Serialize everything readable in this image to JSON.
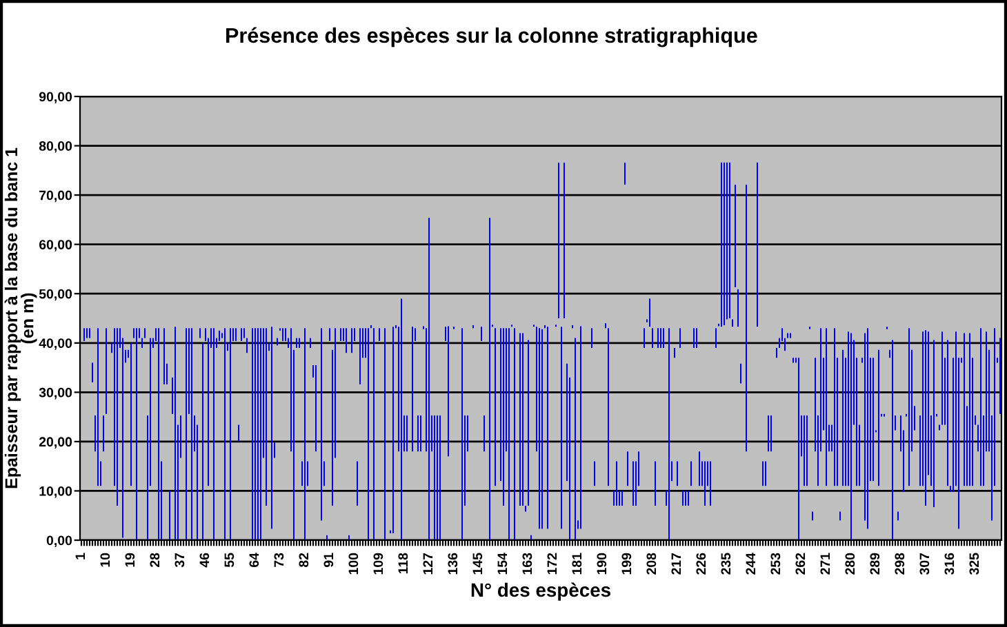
{
  "chart_data": {
    "type": "bar",
    "title": "Présence des espèces sur la colonne stratigraphique",
    "xlabel": "N° des espèces",
    "ylabel": "Epaisseur par rapport à la base du banc 1\n(en m)",
    "categories": [
      "1",
      null,
      null,
      null,
      null,
      null,
      null,
      null,
      null,
      "10",
      null,
      null,
      null,
      null,
      null,
      null,
      null,
      null,
      "19",
      null,
      null,
      null,
      null,
      null,
      null,
      null,
      null,
      "28",
      null,
      null,
      null,
      null,
      null,
      null,
      null,
      null,
      "37",
      null,
      null,
      null,
      null,
      null,
      null,
      null,
      null,
      "46",
      null,
      null,
      null,
      null,
      null,
      null,
      null,
      null,
      "55",
      null,
      null,
      null,
      null,
      null,
      null,
      null,
      null,
      "64",
      null,
      null,
      null,
      null,
      null,
      null,
      null,
      null,
      "73",
      null,
      null,
      null,
      null,
      null,
      null,
      null,
      null,
      "82",
      null,
      null,
      null,
      null,
      null,
      null,
      null,
      null,
      "91",
      null,
      null,
      null,
      null,
      null,
      null,
      null,
      null,
      "100",
      null,
      null,
      null,
      null,
      null,
      null,
      null,
      null,
      "109",
      null,
      null,
      null,
      null,
      null,
      null,
      null,
      null,
      "118",
      null,
      null,
      null,
      null,
      null,
      null,
      null,
      null,
      "127",
      null,
      null,
      null,
      null,
      null,
      null,
      null,
      null,
      "136",
      null,
      null,
      null,
      null,
      null,
      null,
      null,
      null,
      "145",
      null,
      null,
      null,
      null,
      null,
      null,
      null,
      null,
      "154",
      null,
      null,
      null,
      null,
      null,
      null,
      null,
      null,
      "163",
      null,
      null,
      null,
      null,
      null,
      null,
      null,
      null,
      "172",
      null,
      null,
      null,
      null,
      null,
      null,
      null,
      null,
      "181",
      null,
      null,
      null,
      null,
      null,
      null,
      null,
      null,
      "190",
      null,
      null,
      null,
      null,
      null,
      null,
      null,
      null,
      "199",
      null,
      null,
      null,
      null,
      null,
      null,
      null,
      null,
      "208",
      null,
      null,
      null,
      null,
      null,
      null,
      null,
      null,
      "217",
      null,
      null,
      null,
      null,
      null,
      null,
      null,
      null,
      "226",
      null,
      null,
      null,
      null,
      null,
      null,
      null,
      null,
      "235",
      null,
      null,
      null,
      null,
      null,
      null,
      null,
      null,
      "244",
      null,
      null,
      null,
      null,
      null,
      null,
      null,
      null,
      "253",
      null,
      null,
      null,
      null,
      null,
      null,
      null,
      null,
      "262",
      null,
      null,
      null,
      null,
      null,
      null,
      null,
      null,
      "271",
      null,
      null,
      null,
      null,
      null,
      null,
      null,
      null,
      "280",
      null,
      null,
      null,
      null,
      null,
      null,
      null,
      null,
      "289",
      null,
      null,
      null,
      null,
      null,
      null,
      null,
      null,
      "298",
      null,
      null,
      null,
      null,
      null,
      null,
      null,
      null,
      "307",
      null,
      null,
      null,
      null,
      null,
      null,
      null,
      null,
      "316",
      null,
      null,
      null,
      null,
      null,
      null,
      null,
      null,
      "325",
      null,
      null,
      null,
      null,
      null,
      null,
      null,
      null,
      null
    ],
    "base": [
      null,
      40.4,
      41,
      41,
      32,
      18,
      11,
      11,
      18,
      25.6,
      null,
      38,
      11,
      7,
      39,
      0.5,
      36,
      37,
      11,
      41,
      0,
      41,
      39,
      41,
      0,
      11,
      39,
      40.4,
      0,
      0,
      31.6,
      31.6,
      0,
      25.6,
      0,
      0,
      16.7,
      null,
      0,
      25.6,
      0,
      18,
      0,
      41,
      0,
      40.4,
      11,
      39,
      0,
      39,
      40.4,
      41,
      0,
      38.4,
      0,
      40.4,
      40.4,
      20,
      40.4,
      41,
      38,
      null,
      0,
      0,
      0,
      0,
      16.7,
      7,
      38.4,
      2.3,
      16.7,
      39.5,
      42.5,
      40.4,
      40.4,
      39,
      18,
      0,
      39,
      39,
      11,
      0,
      11,
      39,
      33,
      18,
      null,
      4,
      11,
      0,
      40.4,
      7,
      16.7,
      null,
      40.4,
      40.4,
      38,
      0,
      38,
      40.4,
      7,
      31.6,
      37,
      37,
      0,
      43,
      0,
      null,
      40.4,
      null,
      0,
      null,
      1.4,
      1.4,
      43,
      18,
      0,
      18,
      18,
      null,
      18,
      40.4,
      18,
      18,
      42.8,
      18,
      0,
      18,
      0,
      0,
      0,
      null,
      40.4,
      17,
      null,
      42.8,
      null,
      null,
      0,
      7,
      18,
      null,
      43,
      null,
      null,
      40.4,
      18,
      null,
      0,
      43.3,
      11,
      null,
      12,
      7,
      18,
      0,
      43.3,
      0,
      null,
      7,
      7,
      5.8,
      7,
      0,
      43.3,
      18,
      2.3,
      2.3,
      43,
      2.3,
      null,
      null,
      43.3,
      45,
      2.3,
      45,
      12,
      0,
      43,
      0,
      2.3,
      2.3,
      null,
      null,
      null,
      39,
      11,
      null,
      null,
      null,
      43,
      11,
      null,
      7,
      7,
      7,
      7,
      72.1,
      11,
      null,
      7,
      7,
      11,
      null,
      39,
      44.2,
      43.3,
      39,
      7,
      39,
      39,
      39,
      7,
      0,
      12,
      37,
      11,
      39,
      7,
      7,
      7,
      11,
      39,
      39,
      11,
      11,
      7,
      11,
      7,
      null,
      39,
      43.4,
      43.3,
      43.6,
      44.8,
      45,
      43.3,
      51.3,
      43.3,
      31.8,
      null,
      18,
      null,
      null,
      null,
      43.3,
      null,
      11,
      11,
      18,
      18,
      null,
      37,
      39,
      40.4,
      38.4,
      41,
      41,
      36,
      36,
      0,
      17,
      11,
      11,
      42.8,
      4,
      18,
      11,
      18,
      22.3,
      11,
      18,
      18,
      11,
      11,
      4,
      11,
      11,
      11,
      0,
      23.4,
      11,
      11,
      36,
      4,
      2.3,
      12,
      12,
      21.9,
      11,
      25.1,
      25.1,
      42.8,
      37,
      0,
      22.3,
      4,
      18,
      9.8,
      25.1,
      11,
      18,
      22.3,
      null,
      11,
      11,
      7,
      13.2,
      11,
      6.7,
      25.1,
      22.3,
      23.4,
      23.4,
      11,
      9.8,
      9.8,
      11,
      2.3,
      36,
      11,
      11,
      11,
      11,
      23.4,
      18,
      11,
      11,
      18,
      18,
      4,
      11,
      36,
      25.6
    ],
    "values": [
      null,
      2.6,
      2,
      2,
      4,
      7.3,
      32,
      5,
      7.3,
      17.4,
      null,
      2,
      32,
      36,
      4,
      40.5,
      2.6,
      1.6,
      29,
      2,
      43,
      2,
      2,
      2,
      25.3,
      30,
      2,
      2.6,
      43,
      16,
      11.4,
      4.2,
      10,
      7.4,
      43.3,
      23.4,
      8.6,
      null,
      43,
      17.4,
      43,
      7.3,
      23.4,
      2,
      40,
      2.6,
      30,
      4,
      43,
      2,
      2.1,
      1,
      43,
      1.6,
      43,
      2.6,
      2.6,
      3.4,
      2.6,
      2,
      3,
      null,
      43,
      43,
      43,
      43,
      26.3,
      36,
      1.6,
      41,
      3.1,
      1.5,
      0.5,
      2.6,
      2.6,
      2,
      25,
      38.6,
      2,
      2,
      5,
      43,
      5,
      2,
      2.5,
      17.5,
      null,
      39,
      5,
      1,
      2.6,
      31.6,
      26.3,
      null,
      2.6,
      2.6,
      5,
      1,
      5,
      2.6,
      9,
      11.4,
      6,
      6,
      43,
      0.6,
      43,
      null,
      2.6,
      null,
      43,
      null,
      0.6,
      41.9,
      0.6,
      25.3,
      49,
      7.3,
      7.3,
      null,
      25.3,
      2.6,
      7.3,
      7.3,
      0.6,
      25,
      65.4,
      7.3,
      25.3,
      25.3,
      25.3,
      null,
      2.9,
      26.4,
      null,
      0.5,
      null,
      null,
      43,
      18.3,
      7.3,
      null,
      0.6,
      null,
      null,
      2.9,
      7.3,
      null,
      65.4,
      0.4,
      32,
      null,
      31,
      36,
      25,
      43,
      0.4,
      43,
      null,
      35,
      35,
      1.2,
      33.6,
      1,
      0.4,
      25.3,
      40.7,
      40.5,
      0.6,
      41,
      null,
      null,
      0.4,
      31.6,
      41,
      31.6,
      23.8,
      33,
      0.6,
      41,
      1.7,
      41.1,
      null,
      null,
      null,
      4,
      5,
      null,
      null,
      null,
      1,
      32,
      null,
      3,
      9,
      3,
      3,
      4.5,
      7,
      null,
      9,
      9,
      7,
      null,
      4,
      0.6,
      5.7,
      4,
      9,
      4,
      4,
      4,
      3,
      43,
      4,
      2,
      5,
      4,
      3,
      3,
      3,
      5,
      4,
      4,
      7,
      5,
      9,
      5,
      9,
      null,
      4,
      0.5,
      33.3,
      33,
      31.8,
      31.6,
      1.5,
      20.8,
      7.6,
      4,
      null,
      54.1,
      null,
      null,
      null,
      33.3,
      null,
      5,
      5,
      7.3,
      7.3,
      null,
      2,
      2,
      2.6,
      2.6,
      1,
      1,
      1,
      1,
      37,
      8.3,
      14.3,
      14.3,
      0.5,
      1.8,
      19,
      14.3,
      25,
      14.7,
      32,
      5.4,
      5.4,
      32,
      26,
      1.8,
      27.6,
      26,
      31.3,
      42,
      17.2,
      26,
      12.4,
      1,
      38,
      40.7,
      25,
      25,
      0.4,
      27.6,
      0.5,
      0.5,
      0.5,
      1.6,
      40.6,
      3,
      1.8,
      7.3,
      12.5,
      0.5,
      32,
      20.6,
      4.9,
      null,
      14.3,
      31.3,
      35.6,
      29.1,
      14.3,
      33.9,
      0.5,
      1.1,
      18.9,
      13.6,
      29.6,
      1.2,
      27.2,
      31.3,
      34.7,
      1,
      31,
      16.2,
      31,
      26,
      1.9,
      5.4,
      32,
      14.3,
      24.3,
      20.6,
      21.3,
      32,
      1,
      15.4
    ],
    "color": "#0000ff",
    "ylim": [
      0,
      90
    ],
    "yticks": [
      {
        "value": 0,
        "label": "0,00"
      },
      {
        "value": 10,
        "label": "10,00"
      },
      {
        "value": 20,
        "label": "20,00"
      },
      {
        "value": 30,
        "label": "30,00"
      },
      {
        "value": 40,
        "label": "40,00"
      },
      {
        "value": 50,
        "label": "50,00"
      },
      {
        "value": 60,
        "label": "60,00"
      },
      {
        "value": 70,
        "label": "70,00"
      },
      {
        "value": 80,
        "label": "80,00"
      },
      {
        "value": 90,
        "label": "90,00"
      }
    ],
    "grid": "y"
  }
}
